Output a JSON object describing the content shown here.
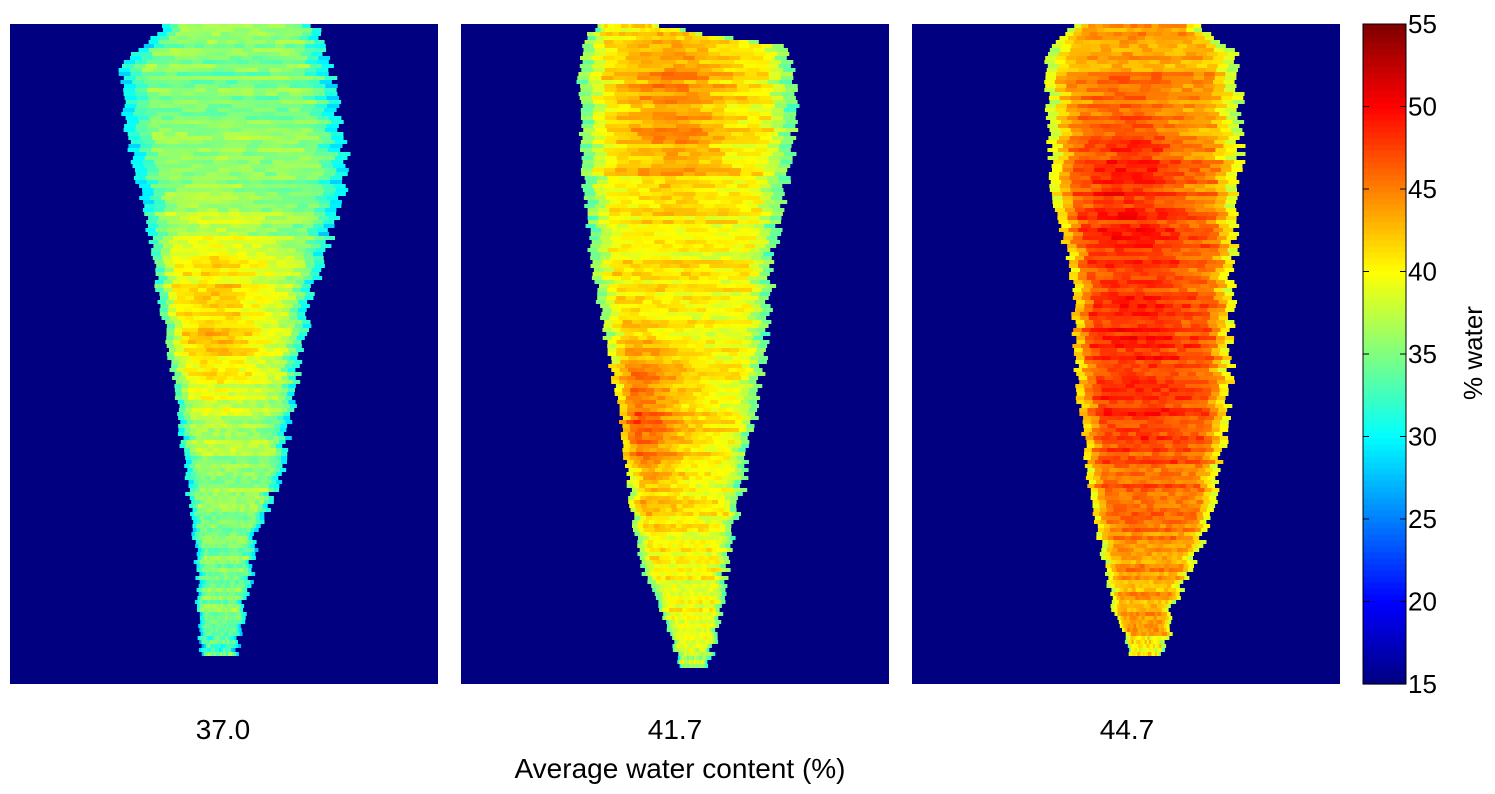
{
  "chart_data": {
    "type": "heatmap",
    "panels": [
      {
        "label": "37.0",
        "average_water_percent": 37.0
      },
      {
        "label": "41.7",
        "average_water_percent": 41.7
      },
      {
        "label": "44.7",
        "average_water_percent": 44.7
      }
    ],
    "xlabel": "Average water content (%)",
    "colorbar": {
      "label": "% water",
      "range": [
        15,
        55
      ],
      "ticks": [
        "15",
        "20",
        "25",
        "30",
        "35",
        "40",
        "45",
        "50",
        "55"
      ],
      "colormap": "jet"
    },
    "background_value": 15,
    "colors": {
      "background": "#00008f"
    }
  }
}
